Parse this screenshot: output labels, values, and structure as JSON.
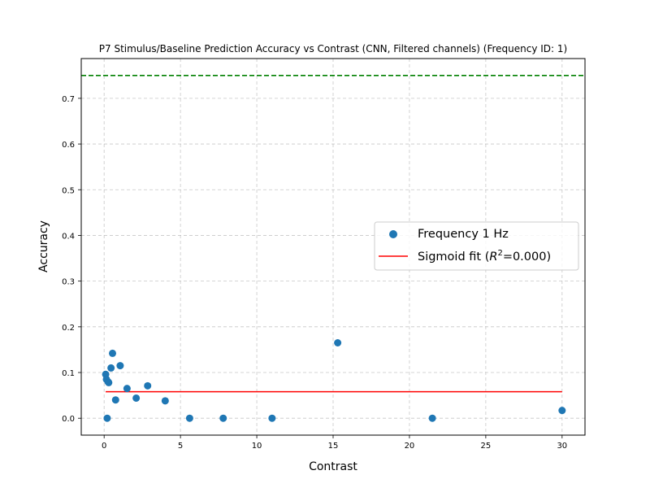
{
  "chart_data": {
    "type": "scatter",
    "title": "P7 Stimulus/Baseline Prediction Accuracy vs Contrast (CNN, Filtered channels) (Frequency ID: 1)",
    "xlabel": "Contrast",
    "ylabel": "Accuracy",
    "xlim": [
      -1.5,
      31.5
    ],
    "ylim": [
      -0.037,
      0.787
    ],
    "xticks": [
      0,
      5,
      10,
      15,
      20,
      25,
      30
    ],
    "yticks": [
      0.0,
      0.1,
      0.2,
      0.3,
      0.4,
      0.5,
      0.6,
      0.7
    ],
    "xtick_labels": [
      "0",
      "5",
      "10",
      "15",
      "20",
      "25",
      "30"
    ],
    "ytick_labels": [
      "0.0",
      "0.1",
      "0.2",
      "0.3",
      "0.4",
      "0.5",
      "0.6",
      "0.7"
    ],
    "grid": true,
    "legend_position": "center-right",
    "series": [
      {
        "name": "Frequency 1 Hz",
        "kind": "scatter",
        "color": "#1f77b4",
        "x": [
          0.1,
          0.15,
          0.2,
          0.25,
          0.3,
          0.45,
          0.55,
          0.75,
          1.05,
          1.5,
          2.1,
          2.85,
          4.0,
          5.6,
          7.8,
          11.0,
          15.3,
          21.5,
          30.0
        ],
        "y": [
          0.096,
          0.085,
          0.0,
          0.08,
          0.078,
          0.11,
          0.142,
          0.04,
          0.115,
          0.065,
          0.044,
          0.071,
          0.038,
          0.0,
          0.0,
          0.0,
          0.165,
          0.0,
          0.017
        ]
      },
      {
        "name": "Sigmoid fit",
        "legend_text": "Sigmoid fit (",
        "legend_var": "R",
        "legend_sup": "2",
        "legend_tail": "=0.000)",
        "kind": "line",
        "color": "#ff0000",
        "x": [
          0.1,
          30.0
        ],
        "y": [
          0.058,
          0.058
        ]
      },
      {
        "name": "",
        "kind": "hline",
        "style": "dashed",
        "color": "#008000",
        "y": 0.75
      }
    ]
  }
}
